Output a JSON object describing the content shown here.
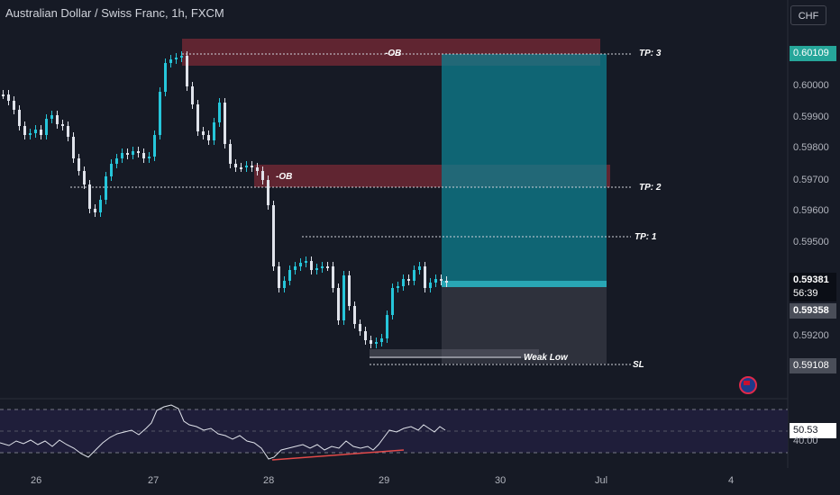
{
  "header": {
    "title": "Australian Dollar / Swiss Franc, 1h, FXCM",
    "currency_button": "CHF"
  },
  "price_axis": {
    "ticks": [
      "0.60000",
      "0.59900",
      "0.59800",
      "0.59700",
      "0.59600",
      "0.59500",
      "0.59200"
    ],
    "current_price": "0.59381",
    "countdown": "56:39",
    "labels": {
      "tp3": "0.60109",
      "entry": "0.59358",
      "sl": "0.59108"
    }
  },
  "rsi_axis": {
    "value": "50.53",
    "level": "40.00"
  },
  "time_axis": [
    "26",
    "27",
    "28",
    "29",
    "30",
    "Jul",
    "4"
  ],
  "annotations": {
    "ob_top": "-OB",
    "ob_mid": "-OB",
    "tp3": "TP: 3",
    "tp2": "TP: 2",
    "tp1": "TP: 1",
    "weak_low": "Weak Low",
    "sl": "SL"
  },
  "colors": {
    "background": "#161a25",
    "bull_candle": "#26c6da",
    "bear_candle": "#e0e3eb",
    "ob_zone": "#7a2a36",
    "target_zone": "#0d7f8f",
    "stop_zone": "#2a2e39",
    "price_label": "#2962ff"
  }
}
